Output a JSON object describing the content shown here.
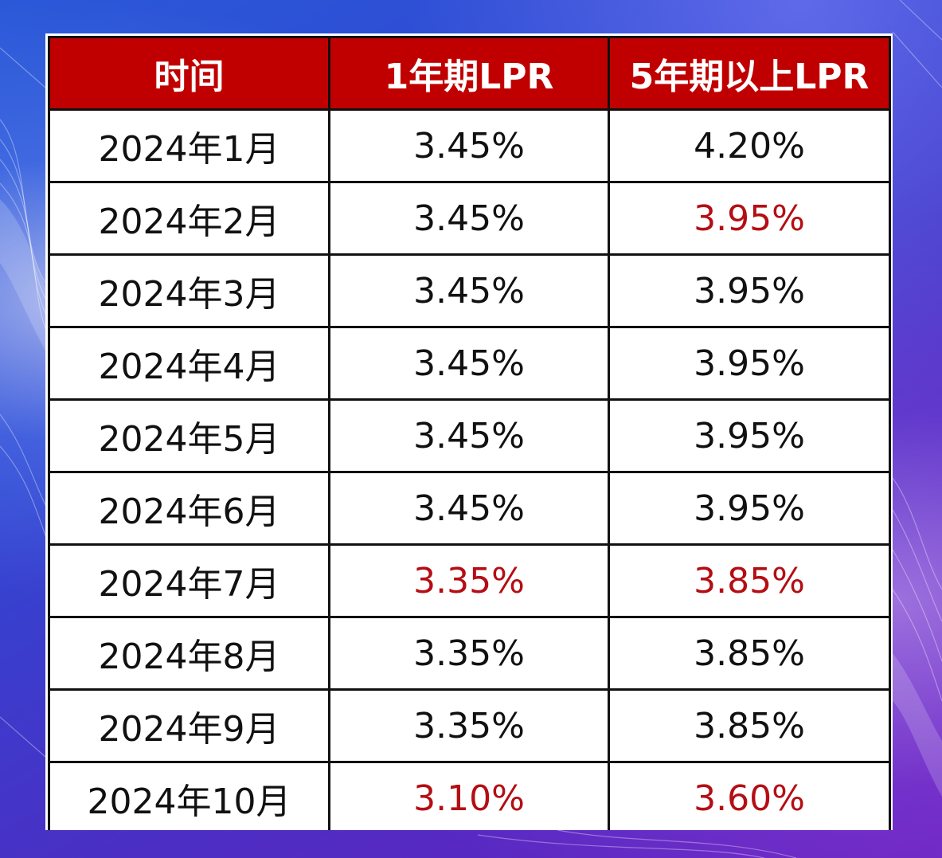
{
  "colors": {
    "header_background": "#c00000",
    "header_text": "#ffffff",
    "body_text": "#111111",
    "changed_value_text": "#b40e14",
    "grid_line": "#111111",
    "page_background": "#3146d2"
  },
  "chart_data": {
    "type": "table",
    "columns": [
      "时间",
      "1年期LPR",
      "5年期以上LPR"
    ],
    "rows": [
      {
        "month": "2024年1月",
        "lpr_1y": "3.45%",
        "lpr_5y": "4.20%",
        "lpr_1y_highlight": false,
        "lpr_5y_highlight": false
      },
      {
        "month": "2024年2月",
        "lpr_1y": "3.45%",
        "lpr_5y": "3.95%",
        "lpr_1y_highlight": false,
        "lpr_5y_highlight": true
      },
      {
        "month": "2024年3月",
        "lpr_1y": "3.45%",
        "lpr_5y": "3.95%",
        "lpr_1y_highlight": false,
        "lpr_5y_highlight": false
      },
      {
        "month": "2024年4月",
        "lpr_1y": "3.45%",
        "lpr_5y": "3.95%",
        "lpr_1y_highlight": false,
        "lpr_5y_highlight": false
      },
      {
        "month": "2024年5月",
        "lpr_1y": "3.45%",
        "lpr_5y": "3.95%",
        "lpr_1y_highlight": false,
        "lpr_5y_highlight": false
      },
      {
        "month": "2024年6月",
        "lpr_1y": "3.45%",
        "lpr_5y": "3.95%",
        "lpr_1y_highlight": false,
        "lpr_5y_highlight": false
      },
      {
        "month": "2024年7月",
        "lpr_1y": "3.35%",
        "lpr_5y": "3.85%",
        "lpr_1y_highlight": true,
        "lpr_5y_highlight": true
      },
      {
        "month": "2024年8月",
        "lpr_1y": "3.35%",
        "lpr_5y": "3.85%",
        "lpr_1y_highlight": false,
        "lpr_5y_highlight": false
      },
      {
        "month": "2024年9月",
        "lpr_1y": "3.35%",
        "lpr_5y": "3.85%",
        "lpr_1y_highlight": false,
        "lpr_5y_highlight": false
      },
      {
        "month": "2024年10月",
        "lpr_1y": "3.10%",
        "lpr_5y": "3.60%",
        "lpr_1y_highlight": true,
        "lpr_5y_highlight": true
      }
    ]
  }
}
